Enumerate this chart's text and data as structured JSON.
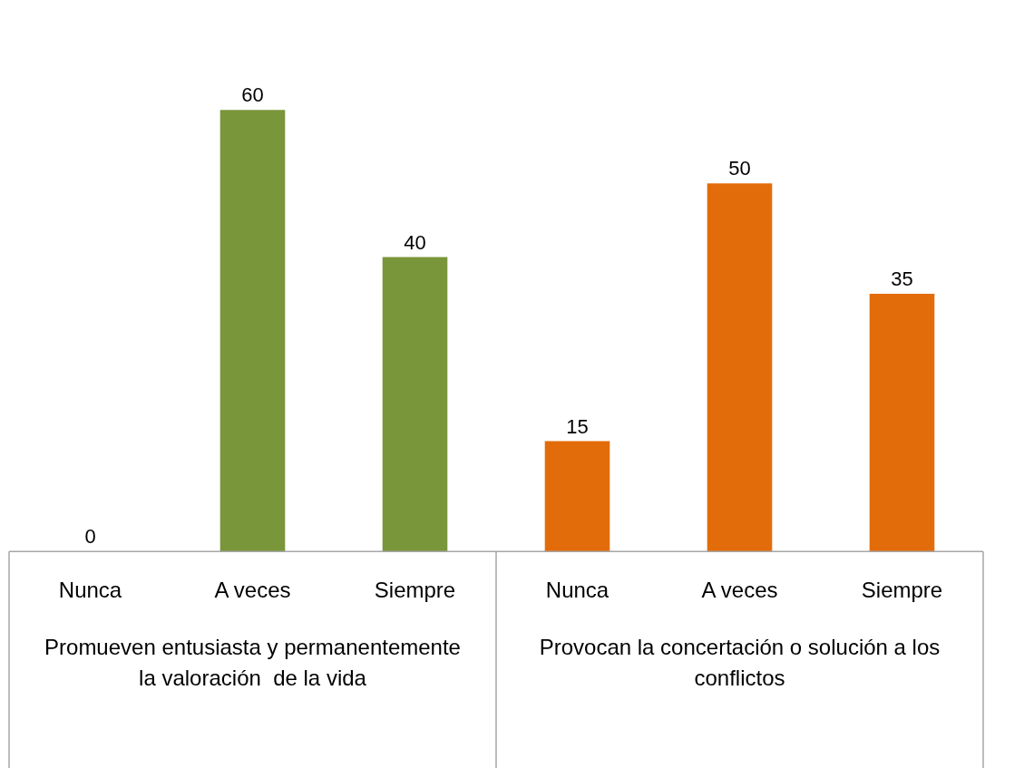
{
  "chart_data": {
    "type": "bar",
    "categories": [
      "Nunca",
      "A veces",
      "Siempre",
      "Nunca",
      "A veces",
      "Siempre"
    ],
    "values": [
      0,
      60,
      40,
      15,
      50,
      35
    ],
    "colors": [
      "#7a963a",
      "#7a963a",
      "#7a963a",
      "#e36c0a",
      "#e36c0a",
      "#e36c0a"
    ],
    "annotations": [
      "Promueven entusiasta y permanentemente la valoración  de la vida",
      "Provocan la concertación o solución a los conflictos"
    ],
    "data_labels": true,
    "legend": false,
    "grid": false,
    "tick_labels": "x"
  }
}
